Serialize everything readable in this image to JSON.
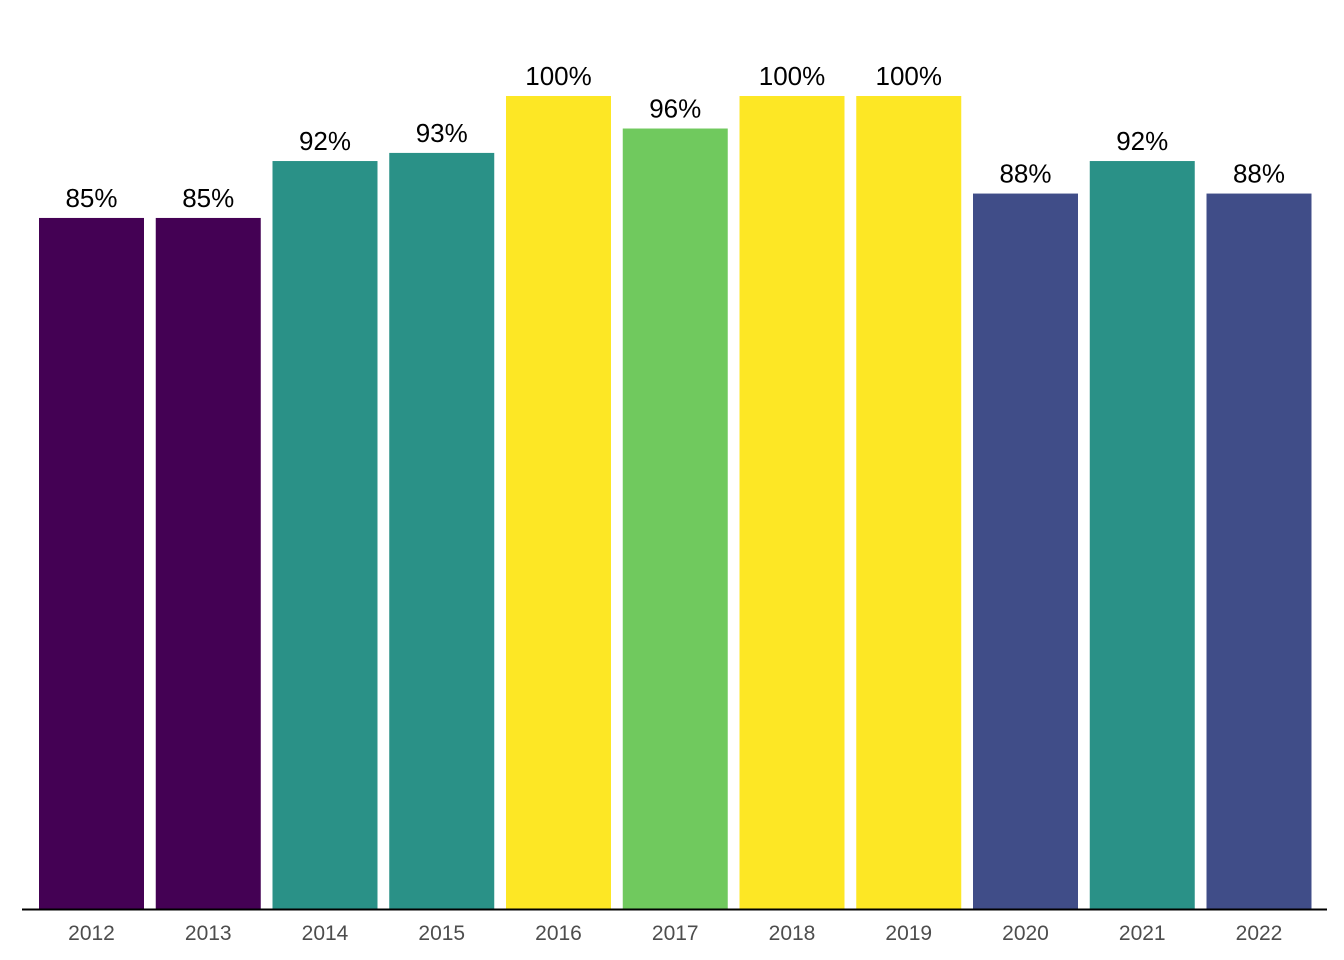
{
  "chart_data": {
    "type": "bar",
    "categories": [
      "2012",
      "2013",
      "2014",
      "2015",
      "2016",
      "2017",
      "2018",
      "2019",
      "2020",
      "2021",
      "2022"
    ],
    "values": [
      85,
      85,
      92,
      93,
      100,
      96,
      100,
      100,
      88,
      92,
      88
    ],
    "value_labels": [
      "85%",
      "85%",
      "92%",
      "93%",
      "100%",
      "96%",
      "100%",
      "100%",
      "88%",
      "92%",
      "88%"
    ],
    "colors": [
      "#440154",
      "#440154",
      "#2a9187",
      "#2a9187",
      "#fde725",
      "#70c95e",
      "#fde725",
      "#fde725",
      "#404d88",
      "#2a9187",
      "#404d88"
    ],
    "ylim": [
      0,
      100
    ],
    "grid": false,
    "legend": "none"
  }
}
